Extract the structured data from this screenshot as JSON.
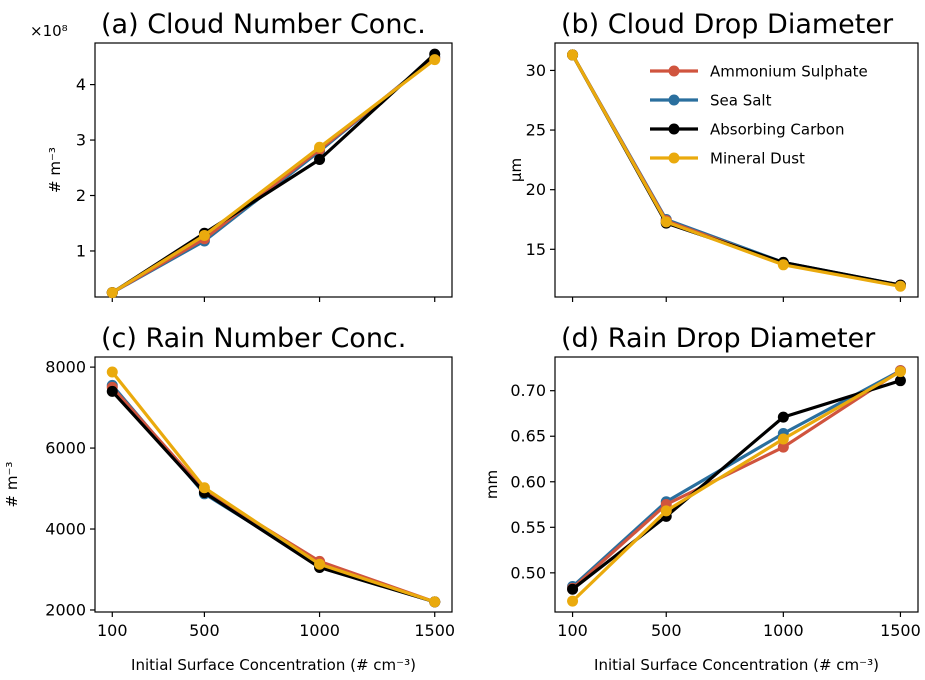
{
  "chart_data": [
    {
      "type": "line",
      "title": "(a) Cloud Number Conc.",
      "xlabel": "",
      "ylabel": "# m⁻³",
      "y_multiplier_label": "×10⁸",
      "x": [
        100,
        500,
        1000,
        1500
      ],
      "xtick_labels": [
        "100",
        "500",
        "1000",
        "1500"
      ],
      "xlim": [
        25,
        1575
      ],
      "ylim": [
        0.17,
        4.75
      ],
      "yticks": [
        1,
        2,
        3,
        4
      ],
      "ytick_labels": [
        "1",
        "2",
        "3",
        "4"
      ],
      "series": [
        {
          "name": "Ammonium Sulphate",
          "values": [
            0.25,
            1.22,
            2.83,
            4.48
          ]
        },
        {
          "name": "Sea Salt",
          "values": [
            0.25,
            1.18,
            2.8,
            4.5
          ]
        },
        {
          "name": "Absorbing Carbon",
          "values": [
            0.25,
            1.32,
            2.65,
            4.55
          ]
        },
        {
          "name": "Mineral Dust",
          "values": [
            0.25,
            1.28,
            2.87,
            4.45
          ]
        }
      ]
    },
    {
      "type": "line",
      "title": "(b) Cloud Drop Diameter",
      "xlabel": "",
      "ylabel": "μm",
      "x": [
        100,
        500,
        1000,
        1500
      ],
      "xtick_labels": [
        "100",
        "500",
        "1000",
        "1500"
      ],
      "xlim": [
        25,
        1575
      ],
      "ylim": [
        11.0,
        32.3
      ],
      "yticks": [
        15,
        20,
        25,
        30
      ],
      "ytick_labels": [
        "15",
        "20",
        "25",
        "30"
      ],
      "legend": "top-right",
      "series": [
        {
          "name": "Ammonium Sulphate",
          "values": [
            31.3,
            17.4,
            13.8,
            12.0
          ]
        },
        {
          "name": "Sea Salt",
          "values": [
            31.3,
            17.5,
            13.9,
            12.0
          ]
        },
        {
          "name": "Absorbing Carbon",
          "values": [
            31.3,
            17.2,
            13.9,
            12.0
          ]
        },
        {
          "name": "Mineral Dust",
          "values": [
            31.3,
            17.3,
            13.7,
            11.9
          ]
        }
      ]
    },
    {
      "type": "line",
      "title": "(c) Rain Number Conc.",
      "xlabel": "Initial Surface Concentration (# cm⁻³)",
      "ylabel": "# m⁻³",
      "x": [
        100,
        500,
        1000,
        1500
      ],
      "xtick_labels": [
        "100",
        "500",
        "1000",
        "1500"
      ],
      "xlim": [
        25,
        1575
      ],
      "ylim": [
        1950,
        8250
      ],
      "yticks": [
        2000,
        4000,
        6000,
        8000
      ],
      "ytick_labels": [
        "2000",
        "4000",
        "6000",
        "8000"
      ],
      "series": [
        {
          "name": "Ammonium Sulphate",
          "values": [
            7500,
            4950,
            3200,
            2200
          ]
        },
        {
          "name": "Sea Salt",
          "values": [
            7550,
            4870,
            3100,
            2200
          ]
        },
        {
          "name": "Absorbing Carbon",
          "values": [
            7400,
            4900,
            3050,
            2200
          ]
        },
        {
          "name": "Mineral Dust",
          "values": [
            7880,
            5020,
            3130,
            2200
          ]
        }
      ]
    },
    {
      "type": "line",
      "title": "(d) Rain Drop Diameter",
      "xlabel": "Initial Surface Concentration (# cm⁻³)",
      "ylabel": "mm",
      "x": [
        100,
        500,
        1000,
        1500
      ],
      "xtick_labels": [
        "100",
        "500",
        "1000",
        "1500"
      ],
      "xlim": [
        25,
        1575
      ],
      "ylim": [
        0.457,
        0.737
      ],
      "yticks": [
        0.5,
        0.55,
        0.6,
        0.65,
        0.7
      ],
      "ytick_labels": [
        "0.50",
        "0.55",
        "0.60",
        "0.65",
        "0.70"
      ],
      "series": [
        {
          "name": "Ammonium Sulphate",
          "values": [
            0.483,
            0.575,
            0.638,
            0.722
          ]
        },
        {
          "name": "Sea Salt",
          "values": [
            0.485,
            0.578,
            0.653,
            0.722
          ]
        },
        {
          "name": "Absorbing Carbon",
          "values": [
            0.482,
            0.562,
            0.671,
            0.711
          ]
        },
        {
          "name": "Mineral Dust",
          "values": [
            0.469,
            0.568,
            0.647,
            0.721
          ]
        }
      ]
    }
  ],
  "colors": {
    "Ammonium Sulphate": "#d0543e",
    "Sea Salt": "#2a6f9e",
    "Absorbing Carbon": "#000000",
    "Mineral Dust": "#eaaa0d"
  }
}
